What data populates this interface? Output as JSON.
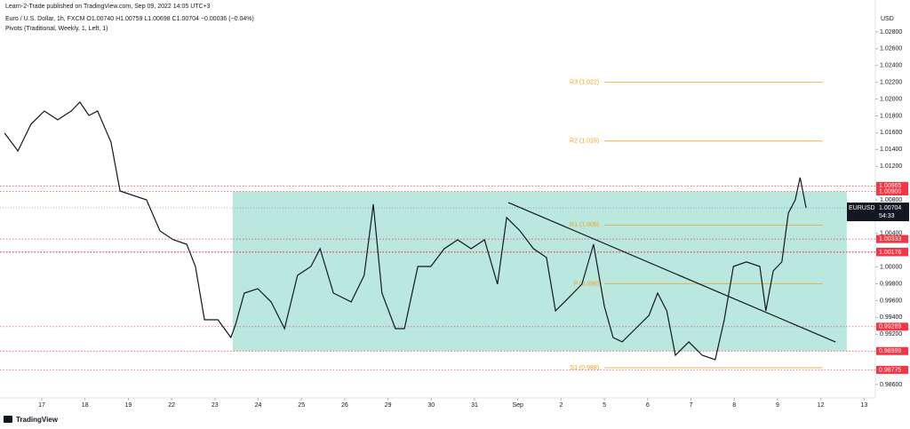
{
  "chart_data": {
    "type": "line",
    "header": "Learn-2-Trade published on TradingView.com, Sep 09, 2022 14:05 UTC+3",
    "title": "Euro / U.S. Dollar, 1h, FXCM  O1.00740 H1.00759 L1.00698 C1.00704 −0.00036 (−0.04%)",
    "subtitle": "Pivots (Traditional, Weekly, 1, Left, 1)",
    "y_label": "USD",
    "footer": "TradingView",
    "ylim": [
      0.98441,
      1.0318
    ],
    "xlim": [
      -0.965,
      19.26
    ],
    "yticks": [
      {
        "value": 1.028,
        "label": "1.02800"
      },
      {
        "value": 1.026,
        "label": "1.02600"
      },
      {
        "value": 1.024,
        "label": "1.02400"
      },
      {
        "value": 1.022,
        "label": "1.02200"
      },
      {
        "value": 1.02,
        "label": "1.02000"
      },
      {
        "value": 1.018,
        "label": "1.01800"
      },
      {
        "value": 1.016,
        "label": "1.01600"
      },
      {
        "value": 1.014,
        "label": "1.01400"
      },
      {
        "value": 1.012,
        "label": "1.01200"
      },
      {
        "value": 1.008,
        "label": "1.00800"
      },
      {
        "value": 1.004,
        "label": "1.00400"
      },
      {
        "value": 1,
        "label": "1.00000"
      },
      {
        "value": 0.998,
        "label": "0.99800"
      },
      {
        "value": 0.996,
        "label": "0.99600"
      },
      {
        "value": 0.994,
        "label": "0.99400"
      },
      {
        "value": 0.992,
        "label": "0.99200"
      },
      {
        "value": 0.986,
        "label": "0.98600"
      }
    ],
    "xticks": [
      {
        "value": 0,
        "label": "17"
      },
      {
        "value": 1,
        "label": "18"
      },
      {
        "value": 2,
        "label": "19"
      },
      {
        "value": 3,
        "label": "22"
      },
      {
        "value": 4,
        "label": "23"
      },
      {
        "value": 5,
        "label": "24"
      },
      {
        "value": 6,
        "label": "25"
      },
      {
        "value": 7,
        "label": "26"
      },
      {
        "value": 8,
        "label": "29"
      },
      {
        "value": 9,
        "label": "30"
      },
      {
        "value": 10,
        "label": "31"
      },
      {
        "value": 11,
        "label": "Sep"
      },
      {
        "value": 12,
        "label": "2"
      },
      {
        "value": 13,
        "label": "5"
      },
      {
        "value": 14,
        "label": "6"
      },
      {
        "value": 15,
        "label": "7"
      },
      {
        "value": 16,
        "label": "8"
      },
      {
        "value": 17,
        "label": "9"
      },
      {
        "value": 18,
        "label": "12"
      },
      {
        "value": 19,
        "label": "13"
      }
    ],
    "series": [
      {
        "color": "#131722",
        "x": [
          -0.86,
          -0.55,
          -0.25,
          0.06,
          0.37,
          0.68,
          0.88,
          1.09,
          1.29,
          1.6,
          1.81,
          2.11,
          2.42,
          2.73,
          3.04,
          3.35,
          3.55,
          3.76,
          4.07,
          4.37,
          4.48,
          4.68,
          4.99,
          5.3,
          5.61,
          5.91,
          6.22,
          6.43,
          6.74,
          7.15,
          7.45,
          7.66,
          7.86,
          8.17,
          8.38,
          8.69,
          8.99,
          9.3,
          9.61,
          9.92,
          10.23,
          10.53,
          10.74,
          11.05,
          11.36,
          11.66,
          11.87,
          12.18,
          12.48,
          12.75,
          13.0,
          13.2,
          13.41,
          13.72,
          14.03,
          14.23,
          14.44,
          14.64,
          14.95,
          15.26,
          15.56,
          15.77,
          15.98,
          16.28,
          16.59,
          16.73,
          16.9,
          17.1,
          17.25,
          17.41,
          17.52,
          17.66
        ],
        "values": [
          1.01594,
          1.01382,
          1.017,
          1.01858,
          1.01753,
          1.01858,
          1.01964,
          1.01805,
          1.01858,
          1.01488,
          1.00906,
          1.00853,
          1.008,
          1.0043,
          1.00324,
          1.00271,
          1.00007,
          0.99372,
          0.99372,
          0.9916,
          0.99319,
          0.99689,
          0.99742,
          0.99584,
          0.99266,
          0.99901,
          1.00007,
          1.00218,
          0.99689,
          0.99584,
          0.99901,
          1.00747,
          0.99689,
          0.99266,
          0.99266,
          1.00007,
          1.00007,
          1.00218,
          1.00324,
          1.00218,
          1.00324,
          0.99795,
          1.00589,
          1.0043,
          1.00218,
          1.00113,
          0.99478,
          0.99637,
          0.99795,
          1.00271,
          0.99531,
          0.9916,
          0.99108,
          0.99266,
          0.99425,
          0.99689,
          0.99478,
          0.98949,
          0.99108,
          0.98949,
          0.98896,
          0.99372,
          1.00007,
          1.0006,
          1.00007,
          0.99478,
          0.99954,
          1.0006,
          1.00642,
          1.008,
          1.01065,
          1.00704
        ]
      }
    ],
    "zone": {
      "color": "#b2e4da",
      "x": [
        4.41,
        18.6
      ],
      "values": [
        1.009,
        0.98999
      ]
    },
    "trendline": {
      "color": "#131722",
      "x": [
        10.78,
        18.34
      ],
      "values": [
        1.00768,
        0.99107
      ]
    },
    "pivot_color": "#f7a21b",
    "pivot_x": [
      13.0,
      18.04
    ],
    "pivots": [
      {
        "label": "R3 (1.022)",
        "value": 1.022
      },
      {
        "label": "R2 (1.015)",
        "value": 1.015
      },
      {
        "label": "R1 (1.005)",
        "value": 1.005
      },
      {
        "label": "P (0.998)",
        "value": 0.998
      },
      {
        "label": "S1 (0.988)",
        "value": 0.988
      }
    ],
    "level_color": "#f23645",
    "levels": [
      1.00965,
      {
        "value": 1.009,
        "label": "1.00900"
      },
      1.00333,
      1.00182,
      1.00176,
      0.99289,
      0.98999,
      0.98775
    ],
    "last": {
      "symbol": "EURUSD",
      "value": 1.00704,
      "countdown": "54:33",
      "color": "#131722"
    }
  }
}
